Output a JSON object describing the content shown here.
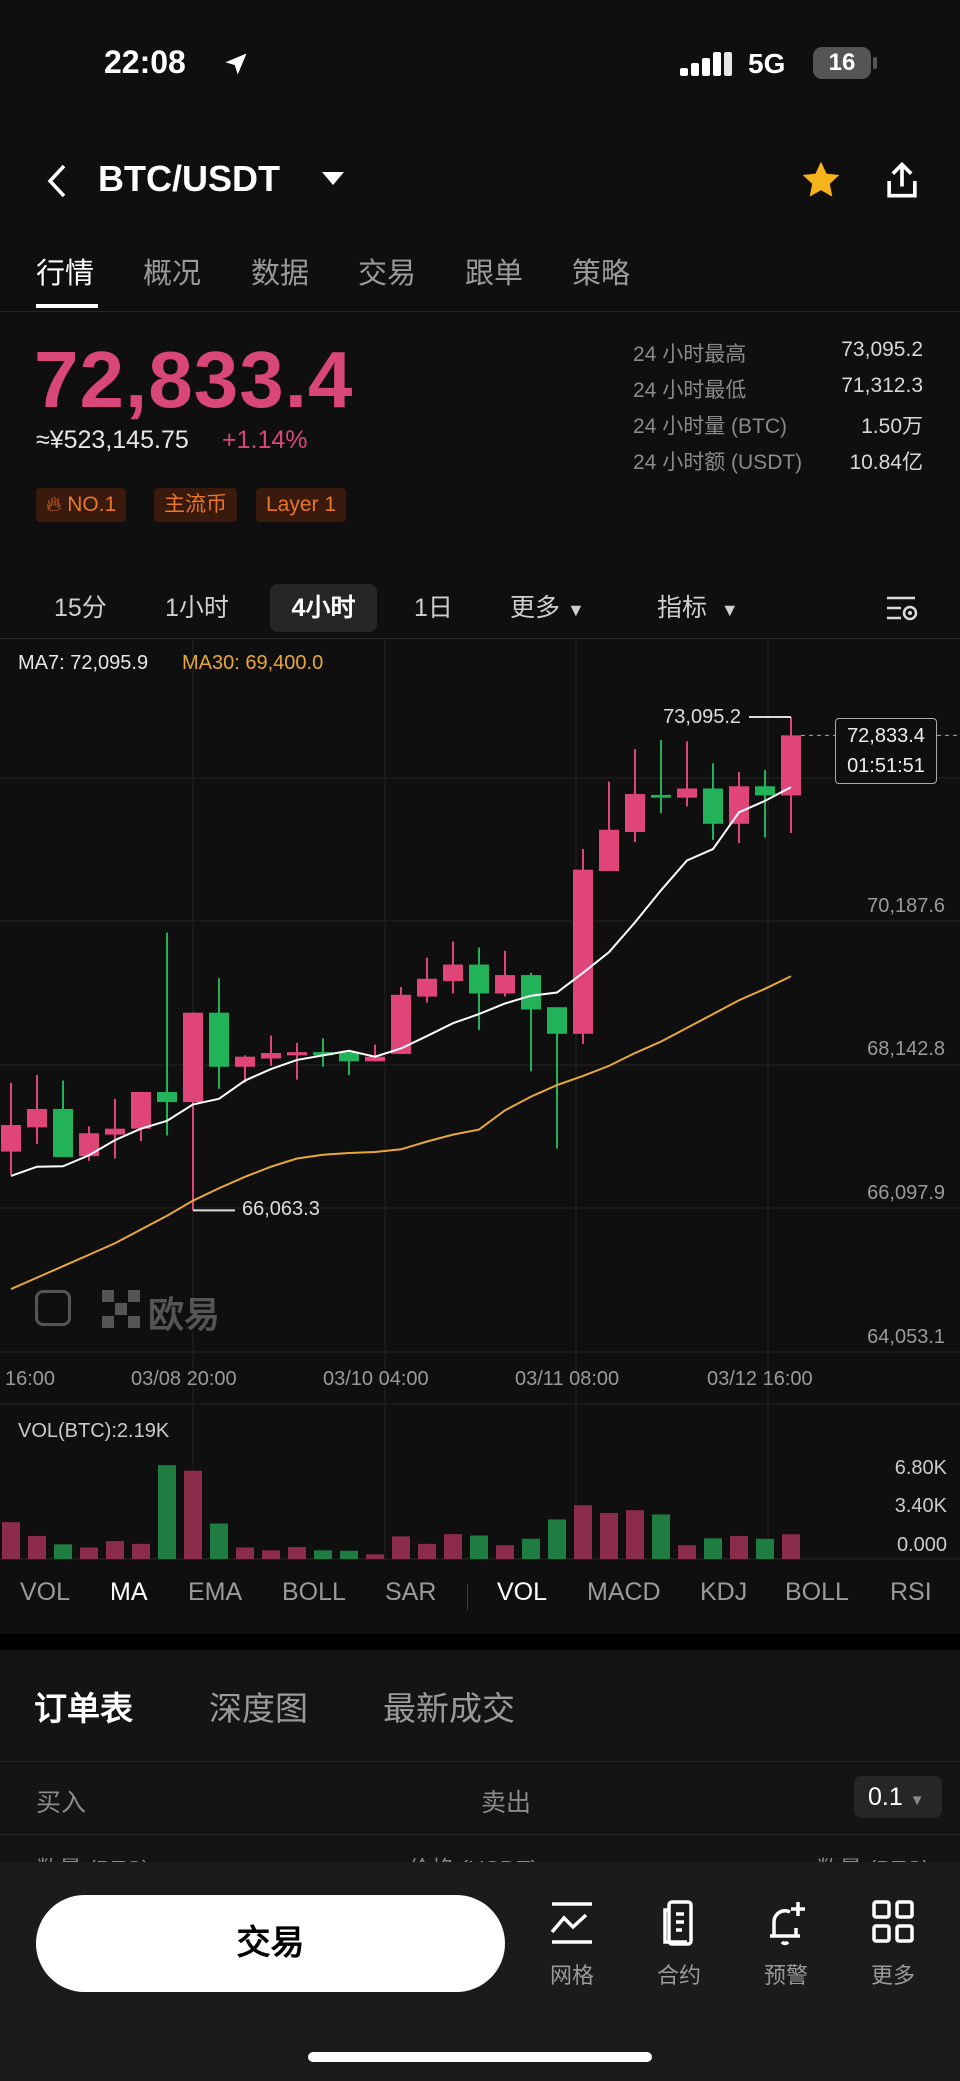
{
  "status": {
    "time": "22:08",
    "network": "5G",
    "battery": "16"
  },
  "header": {
    "pair": "BTC/USDT",
    "favorited": true
  },
  "tabs": [
    "行情",
    "概况",
    "数据",
    "交易",
    "跟单",
    "策略"
  ],
  "price": {
    "last": "72,833.4",
    "cny": "≈¥523,145.75",
    "change": "+1.14%",
    "color": "#d9467a"
  },
  "tags": [
    "NO.1",
    "主流币",
    "Layer 1"
  ],
  "stats": [
    {
      "label": "24 小时最高",
      "value": "73,095.2"
    },
    {
      "label": "24 小时最低",
      "value": "71,312.3"
    },
    {
      "label": "24 小时量 (BTC)",
      "value": "1.50万"
    },
    {
      "label": "24 小时额 (USDT)",
      "value": "10.84亿"
    }
  ],
  "timeframes": {
    "items": [
      "15分",
      "1小时",
      "4小时",
      "1日"
    ],
    "selected": "4小时",
    "more": "更多",
    "indicators": "指标"
  },
  "chart_data": {
    "type": "candlestick",
    "legend": {
      "ma7": "MA7: 72,095.9",
      "ma30": "MA30: 69,400.0"
    },
    "y_ticks": [
      "70,187.6",
      "68,142.8",
      "66,097.9",
      "64,053.1"
    ],
    "y_tick_values": [
      70187.6,
      68142.8,
      66097.9,
      64053.1
    ],
    "x_ticks": [
      "16:00",
      "03/08 20:00",
      "03/10 04:00",
      "03/11 08:00",
      "03/12 16:00"
    ],
    "high_label": "73,095.2",
    "low_label": "66,063.3",
    "current": {
      "price": "72,833.4",
      "countdown": "01:51:51",
      "value": 72833.4
    },
    "colors": {
      "up": "#e0457a",
      "down": "#22b35a",
      "ma7": "#ffffff",
      "ma30": "#e9a83a"
    },
    "ohlc": [
      [
        66901,
        67881,
        66575,
        67280
      ],
      [
        67247,
        67993,
        67012,
        67509
      ],
      [
        67509,
        67914,
        66823,
        66823
      ],
      [
        66836,
        67261,
        66771,
        67163
      ],
      [
        67143,
        67653,
        66803,
        67228
      ],
      [
        67228,
        67751,
        67052,
        67751
      ],
      [
        67751,
        70024,
        67130,
        67607
      ],
      [
        67607,
        68881,
        66063.3,
        68881
      ],
      [
        68881,
        69371,
        67796,
        68110
      ],
      [
        68110,
        68273,
        67881,
        68254
      ],
      [
        68228,
        68554,
        68123,
        68306
      ],
      [
        68273,
        68450,
        67927,
        68319
      ],
      [
        68319,
        68515,
        68110,
        68273
      ],
      [
        68319,
        68319,
        67993,
        68188
      ],
      [
        68188,
        68424,
        68188,
        68254
      ],
      [
        68293,
        69247,
        68293,
        69136
      ],
      [
        69110,
        69665,
        69025,
        69364
      ],
      [
        69332,
        69894,
        69155,
        69567
      ],
      [
        69567,
        69809,
        68633,
        69155
      ],
      [
        69155,
        69763,
        69110,
        69417
      ],
      [
        69417,
        69449,
        68045,
        68927
      ],
      [
        68959,
        68959,
        66947,
        68580
      ],
      [
        68580,
        71213,
        68437,
        70919
      ],
      [
        70900,
        72174,
        70900,
        71488
      ],
      [
        71455,
        72637,
        71311,
        71997
      ],
      [
        71984,
        72768,
        71723,
        71945
      ],
      [
        71945,
        72748,
        71821,
        72076
      ],
      [
        72076,
        72435,
        71344,
        71573
      ],
      [
        71573,
        72311,
        71298,
        72108
      ],
      [
        72108,
        72337,
        71376,
        71977
      ],
      [
        71977,
        73095.2,
        71442,
        72833.4
      ]
    ],
    "ma7": [
      66555,
      66686,
      66692,
      66849,
      67065,
      67228,
      67339,
      67574,
      67653,
      67914,
      68077,
      68208,
      68273,
      68339,
      68254,
      68371,
      68548,
      68731,
      68861,
      69012,
      69123,
      69168,
      69449,
      69743,
      70168,
      70625,
      71050,
      71213,
      71736,
      71900,
      72095.9
    ],
    "ma30": [
      64942,
      65105,
      65268,
      65431,
      65595,
      65791,
      65987,
      66202,
      66379,
      66542,
      66686,
      66803,
      66856,
      66882,
      66895,
      66934,
      67045,
      67143,
      67215,
      67489,
      67685,
      67849,
      67979,
      68123,
      68306,
      68469,
      68665,
      68861,
      69058,
      69221,
      69400
    ],
    "volume": {
      "label": "VOL(BTC):2.19K",
      "ticks": [
        "6.80K",
        "3.40K",
        "0.000"
      ],
      "values": [
        3260,
        2040,
        1300,
        1020,
        1590,
        1340,
        8310,
        7820,
        3140,
        1020,
        770,
        1060,
        770,
        730,
        410,
        2000,
        1340,
        2200,
        2080,
        1220,
        1790,
        3500,
        4760,
        4070,
        4320,
        3950,
        1220,
        1830,
        2040,
        1790,
        2190
      ]
    }
  },
  "watermark": "欧易",
  "indicators": {
    "main": [
      "VOL",
      "MA",
      "EMA",
      "BOLL",
      "SAR"
    ],
    "sub": [
      "VOL",
      "MACD",
      "KDJ",
      "BOLL",
      "RSI"
    ],
    "active_main": "MA",
    "active_sub": "VOL"
  },
  "orderbook": {
    "tabs": [
      "订单表",
      "深度图",
      "最新成交"
    ],
    "buy": "买入",
    "sell": "卖出",
    "precision": "0.1",
    "cols": [
      "数量 (BTC)",
      "价格 (USDT)",
      "数量 (BTC)"
    ]
  },
  "bottom": {
    "trade": "交易",
    "items": [
      {
        "label": "网格",
        "icon": "grid-trading-icon"
      },
      {
        "label": "合约",
        "icon": "contract-icon"
      },
      {
        "label": "预警",
        "icon": "alert-bell-icon"
      },
      {
        "label": "更多",
        "icon": "more-grid-icon"
      }
    ]
  }
}
